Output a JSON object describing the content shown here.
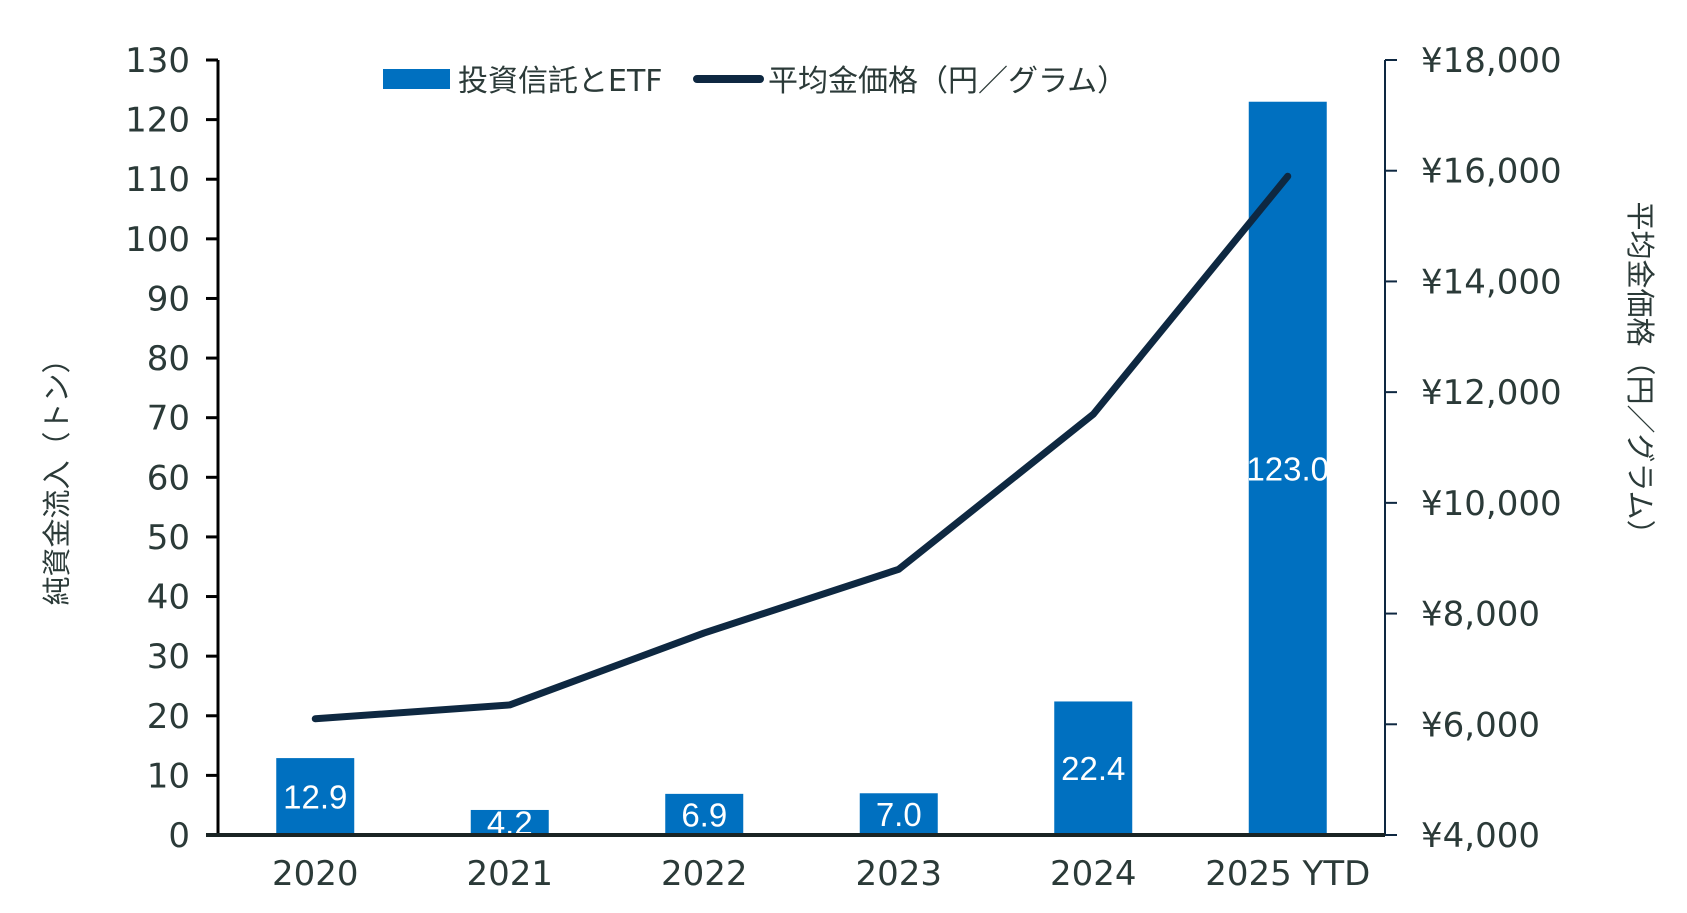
{
  "chart_data": {
    "type": "bar+line",
    "title": "",
    "categories": [
      "2020",
      "2021",
      "2022",
      "2023",
      "2024",
      "2025 YTD"
    ],
    "series": [
      {
        "name": "投資信託とETF",
        "type": "bar",
        "axis": "left",
        "values": [
          12.9,
          4.2,
          6.9,
          7.0,
          22.4,
          123.0
        ],
        "data_labels": [
          "12.9",
          "4.2",
          "6.9",
          "7.0",
          "22.4",
          "123.0"
        ],
        "color": "#0070c0"
      },
      {
        "name": "平均金価格（円／グラム）",
        "type": "line",
        "axis": "right",
        "values": [
          6100,
          6350,
          7650,
          8800,
          11600,
          15900
        ],
        "color": "#0e2841"
      }
    ],
    "y_left": {
      "label": "純資金流入（トン）",
      "lim": [
        0,
        130
      ],
      "ticks": [
        0,
        10,
        20,
        30,
        40,
        50,
        60,
        70,
        80,
        90,
        100,
        110,
        120,
        130
      ],
      "tick_labels": [
        "0",
        "10",
        "20",
        "30",
        "40",
        "50",
        "60",
        "70",
        "80",
        "90",
        "100",
        "110",
        "120",
        "130"
      ]
    },
    "y_right": {
      "label": "平均金価格（円／グラム）",
      "lim": [
        4000,
        18000
      ],
      "ticks": [
        4000,
        6000,
        8000,
        10000,
        12000,
        14000,
        16000,
        18000
      ],
      "tick_labels": [
        "¥4,000",
        "¥6,000",
        "¥8,000",
        "¥10,000",
        "¥12,000",
        "¥14,000",
        "¥16,000",
        "¥18,000"
      ]
    },
    "xlabel": "",
    "grid": false,
    "legend": {
      "position": "top-center",
      "entries": [
        "投資信託とETF",
        "平均金価格（円／グラム）"
      ]
    },
    "colors": {
      "axis": "#000000",
      "right_axis": "#0e2841",
      "text": "#2b3a38",
      "label_text": "#ffffff"
    }
  }
}
